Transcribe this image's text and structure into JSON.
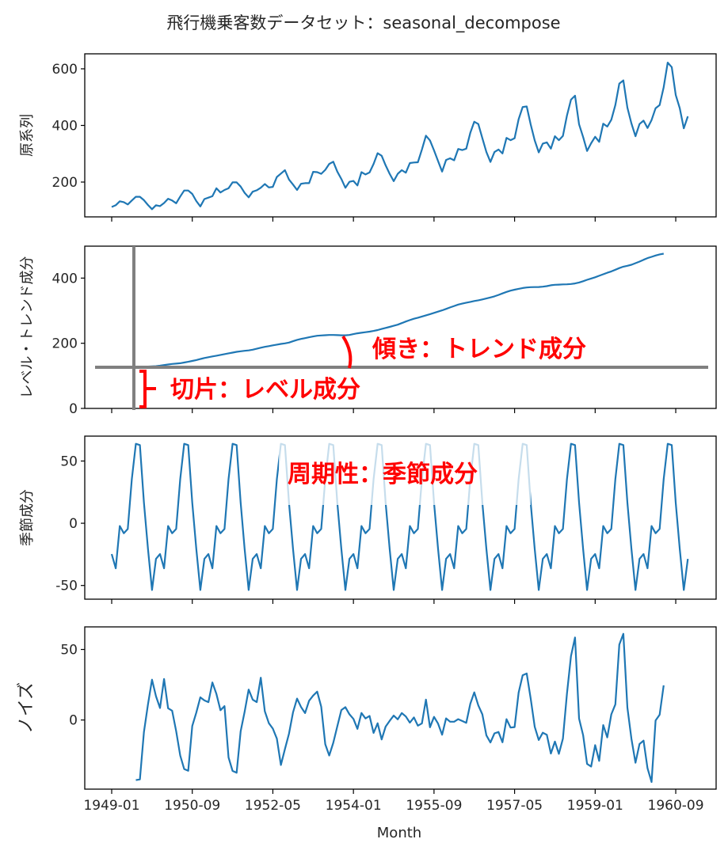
{
  "chart_data": {
    "type": "line",
    "title": "飛行機乗客数データセット：seasonal_decompose",
    "xlabel": "Month",
    "x_start": "1949-01",
    "x_end": "1960-12",
    "x_tick_labels": [
      "1949-01",
      "1950-09",
      "1952-05",
      "1954-01",
      "1955-09",
      "1957-05",
      "1959-01",
      "1960-09"
    ],
    "grid": false,
    "line_color": "#1f77b4",
    "panels": [
      {
        "ylabel": "原系列",
        "component": "observed",
        "yticks": [
          200,
          400,
          600
        ],
        "ylim": [
          77,
          653
        ]
      },
      {
        "ylabel": "レベル・トレンド成分",
        "component": "trend",
        "yticks": [
          0,
          200,
          400
        ],
        "ylim": [
          0,
          498
        ]
      },
      {
        "ylabel": "季節成分",
        "component": "seasonal",
        "yticks": [
          -50,
          0,
          50
        ],
        "ylim": [
          -61,
          70
        ]
      },
      {
        "ylabel": "ノイズ",
        "component": "resid",
        "yticks": [
          0,
          50
        ],
        "ylim": [
          -49,
          66
        ]
      }
    ],
    "observed": [
      112,
      118,
      132,
      129,
      121,
      135,
      148,
      148,
      136,
      119,
      104,
      118,
      115,
      126,
      141,
      135,
      125,
      149,
      170,
      170,
      158,
      133,
      114,
      140,
      145,
      150,
      178,
      163,
      172,
      178,
      199,
      199,
      184,
      162,
      146,
      166,
      171,
      180,
      193,
      181,
      183,
      218,
      230,
      242,
      209,
      191,
      172,
      194,
      196,
      196,
      236,
      235,
      229,
      243,
      264,
      272,
      237,
      211,
      180,
      201,
      204,
      188,
      235,
      227,
      234,
      264,
      302,
      293,
      259,
      229,
      203,
      229,
      242,
      233,
      267,
      269,
      270,
      315,
      364,
      347,
      312,
      274,
      237,
      278,
      284,
      277,
      317,
      313,
      318,
      374,
      413,
      405,
      355,
      306,
      271,
      306,
      315,
      301,
      356,
      348,
      355,
      422,
      465,
      467,
      404,
      347,
      305,
      336,
      340,
      318,
      362,
      348,
      363,
      435,
      491,
      505,
      404,
      359,
      310,
      337,
      360,
      342,
      406,
      396,
      420,
      472,
      548,
      559,
      463,
      407,
      362,
      405,
      417,
      391,
      419,
      461,
      472,
      535,
      622,
      606,
      508,
      461,
      390,
      432
    ],
    "decomposition": "additive, period 12",
    "annotations": {
      "slope": "傾き：トレンド成分",
      "intercept": "切片：レベル成分",
      "seasonality": "周期性：季節成分",
      "annotation_color": "#ff0000",
      "guide_color": "#808080"
    }
  }
}
